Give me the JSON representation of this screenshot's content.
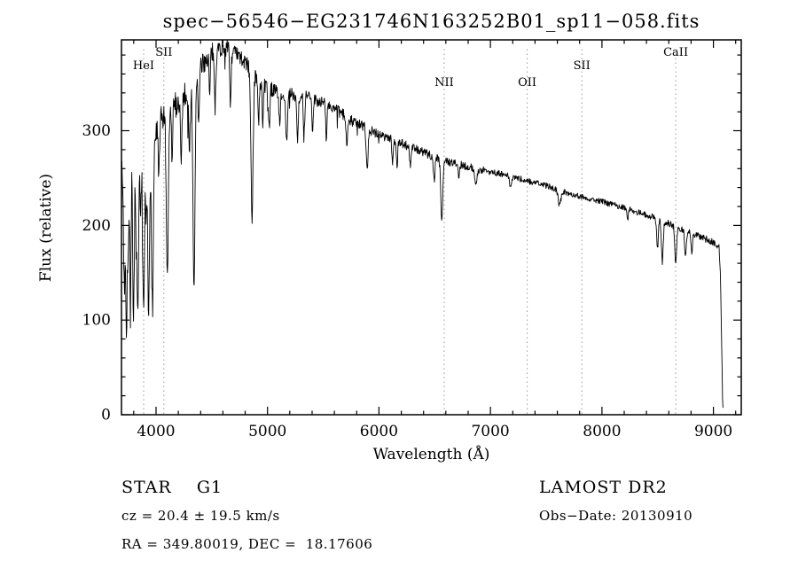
{
  "chart_data": {
    "type": "line",
    "title": "spec−56546−EG231746N163252B01_sp11−058.fits",
    "xlabel": "Wavelength (Å)",
    "ylabel": "Flux (relative)",
    "xlim": [
      3690,
      9250
    ],
    "ylim": [
      0,
      396
    ],
    "xticks": [
      4000,
      5000,
      6000,
      7000,
      8000,
      9000
    ],
    "yticks": [
      0,
      100,
      200,
      300
    ],
    "xtick_minor_step": 200,
    "ytick_minor_step": 20,
    "line_color": "#000000",
    "marker_line_color": "#999999",
    "line_markers": [
      {
        "label": "HeI",
        "wavelength": 3889,
        "row": 1
      },
      {
        "label": "SII",
        "wavelength": 4070,
        "row": 0
      },
      {
        "label": "NII",
        "wavelength": 6585,
        "row": 2
      },
      {
        "label": "OII",
        "wavelength": 7330,
        "row": 2
      },
      {
        "label": "SII",
        "wavelength": 7820,
        "row": 1
      },
      {
        "label": "CaII",
        "wavelength": 8662,
        "row": 0
      }
    ],
    "continuum_points": [
      [
        3690,
        240
      ],
      [
        3705,
        252
      ],
      [
        3725,
        260
      ],
      [
        3745,
        263
      ],
      [
        3765,
        265
      ],
      [
        3790,
        267
      ],
      [
        3815,
        268
      ],
      [
        3845,
        270
      ],
      [
        3875,
        268
      ],
      [
        3905,
        269
      ],
      [
        3935,
        272
      ],
      [
        3965,
        280
      ],
      [
        4000,
        298
      ],
      [
        4035,
        308
      ],
      [
        4070,
        315
      ],
      [
        4110,
        321
      ],
      [
        4150,
        325
      ],
      [
        4200,
        330
      ],
      [
        4260,
        338
      ],
      [
        4320,
        350
      ],
      [
        4380,
        362
      ],
      [
        4440,
        374
      ],
      [
        4500,
        382
      ],
      [
        4560,
        387
      ],
      [
        4620,
        388
      ],
      [
        4680,
        384
      ],
      [
        4740,
        378
      ],
      [
        4800,
        372
      ],
      [
        4860,
        362
      ],
      [
        4920,
        352
      ],
      [
        4980,
        347
      ],
      [
        5040,
        344
      ],
      [
        5100,
        341
      ],
      [
        5200,
        339
      ],
      [
        5300,
        337
      ],
      [
        5400,
        334
      ],
      [
        5500,
        330
      ],
      [
        5600,
        323
      ],
      [
        5700,
        315
      ],
      [
        5800,
        308
      ],
      [
        5900,
        302
      ],
      [
        6000,
        297
      ],
      [
        6100,
        292
      ],
      [
        6200,
        287
      ],
      [
        6300,
        282
      ],
      [
        6400,
        277
      ],
      [
        6500,
        272
      ],
      [
        6600,
        268
      ],
      [
        6700,
        265
      ],
      [
        6800,
        262
      ],
      [
        6900,
        259
      ],
      [
        7000,
        257
      ],
      [
        7100,
        254
      ],
      [
        7200,
        251
      ],
      [
        7300,
        248
      ],
      [
        7400,
        245
      ],
      [
        7500,
        242
      ],
      [
        7600,
        238
      ],
      [
        7700,
        234
      ],
      [
        7800,
        231
      ],
      [
        7900,
        228
      ],
      [
        8000,
        225
      ],
      [
        8100,
        222
      ],
      [
        8200,
        219
      ],
      [
        8300,
        215
      ],
      [
        8400,
        211
      ],
      [
        8500,
        207
      ],
      [
        8600,
        202
      ],
      [
        8700,
        197
      ],
      [
        8800,
        192
      ],
      [
        8900,
        187
      ],
      [
        9000,
        182
      ],
      [
        9030,
        179
      ],
      [
        9050,
        176
      ],
      [
        9062,
        150
      ],
      [
        9072,
        90
      ],
      [
        9082,
        20
      ],
      [
        9088,
        2
      ]
    ],
    "absorption_lines": [
      [
        3715,
        120,
        6
      ],
      [
        3735,
        165,
        7
      ],
      [
        3752,
        90,
        5
      ],
      [
        3770,
        150,
        6
      ],
      [
        3798,
        160,
        7
      ],
      [
        3820,
        80,
        5
      ],
      [
        3835,
        175,
        7
      ],
      [
        3860,
        70,
        5
      ],
      [
        3889,
        178,
        8
      ],
      [
        3912,
        60,
        5
      ],
      [
        3933,
        172,
        8
      ],
      [
        3968,
        168,
        8
      ],
      [
        4026,
        60,
        6
      ],
      [
        4101,
        185,
        9
      ],
      [
        4144,
        50,
        6
      ],
      [
        4226,
        70,
        6
      ],
      [
        4300,
        60,
        8
      ],
      [
        4340,
        228,
        9
      ],
      [
        4383,
        55,
        6
      ],
      [
        4481,
        45,
        5
      ],
      [
        4530,
        60,
        6
      ],
      [
        4668,
        55,
        6
      ],
      [
        4861,
        158,
        9
      ],
      [
        4920,
        45,
        6
      ],
      [
        4957,
        40,
        5
      ],
      [
        5015,
        45,
        6
      ],
      [
        5110,
        40,
        6
      ],
      [
        5172,
        55,
        8
      ],
      [
        5270,
        45,
        7
      ],
      [
        5328,
        40,
        6
      ],
      [
        5406,
        35,
        6
      ],
      [
        5528,
        35,
        6
      ],
      [
        5710,
        30,
        6
      ],
      [
        5893,
        42,
        8
      ],
      [
        6122,
        25,
        6
      ],
      [
        6162,
        25,
        6
      ],
      [
        6280,
        20,
        6
      ],
      [
        6495,
        25,
        7
      ],
      [
        6563,
        62,
        9
      ],
      [
        6717,
        15,
        6
      ],
      [
        6870,
        18,
        10
      ],
      [
        7180,
        12,
        8
      ],
      [
        7620,
        16,
        12
      ],
      [
        8230,
        12,
        7
      ],
      [
        8498,
        32,
        7
      ],
      [
        8542,
        44,
        8
      ],
      [
        8662,
        40,
        8
      ],
      [
        8750,
        28,
        7
      ],
      [
        8806,
        20,
        6
      ]
    ],
    "noise": {
      "seed": 7,
      "sample_step": 4,
      "amplitude_anchors": [
        [
          3690,
          26
        ],
        [
          3800,
          24
        ],
        [
          3900,
          22
        ],
        [
          4000,
          17
        ],
        [
          4150,
          14
        ],
        [
          4350,
          12
        ],
        [
          4550,
          10
        ],
        [
          4750,
          9
        ],
        [
          5000,
          8
        ],
        [
          5300,
          7
        ],
        [
          5600,
          6.5
        ],
        [
          5900,
          6
        ],
        [
          6200,
          5
        ],
        [
          6500,
          4.5
        ],
        [
          6800,
          4
        ],
        [
          7100,
          3.5
        ],
        [
          7500,
          3.2
        ],
        [
          8000,
          3
        ],
        [
          8400,
          3.2
        ],
        [
          8700,
          3.5
        ],
        [
          9000,
          4
        ],
        [
          9088,
          4
        ]
      ],
      "spike_probability": 0.055,
      "spike_scale": 2.2,
      "spike_max_wavelength": 6000
    }
  },
  "footer": {
    "class_and_subclass": "STAR    G1",
    "cz": "cz = 20.4 ± 19.5 km/s",
    "ra_dec": "RA = 349.80019, DEC =  18.17606",
    "survey": "LAMOST DR2",
    "obs_date": "Obs−Date: 20130910"
  }
}
